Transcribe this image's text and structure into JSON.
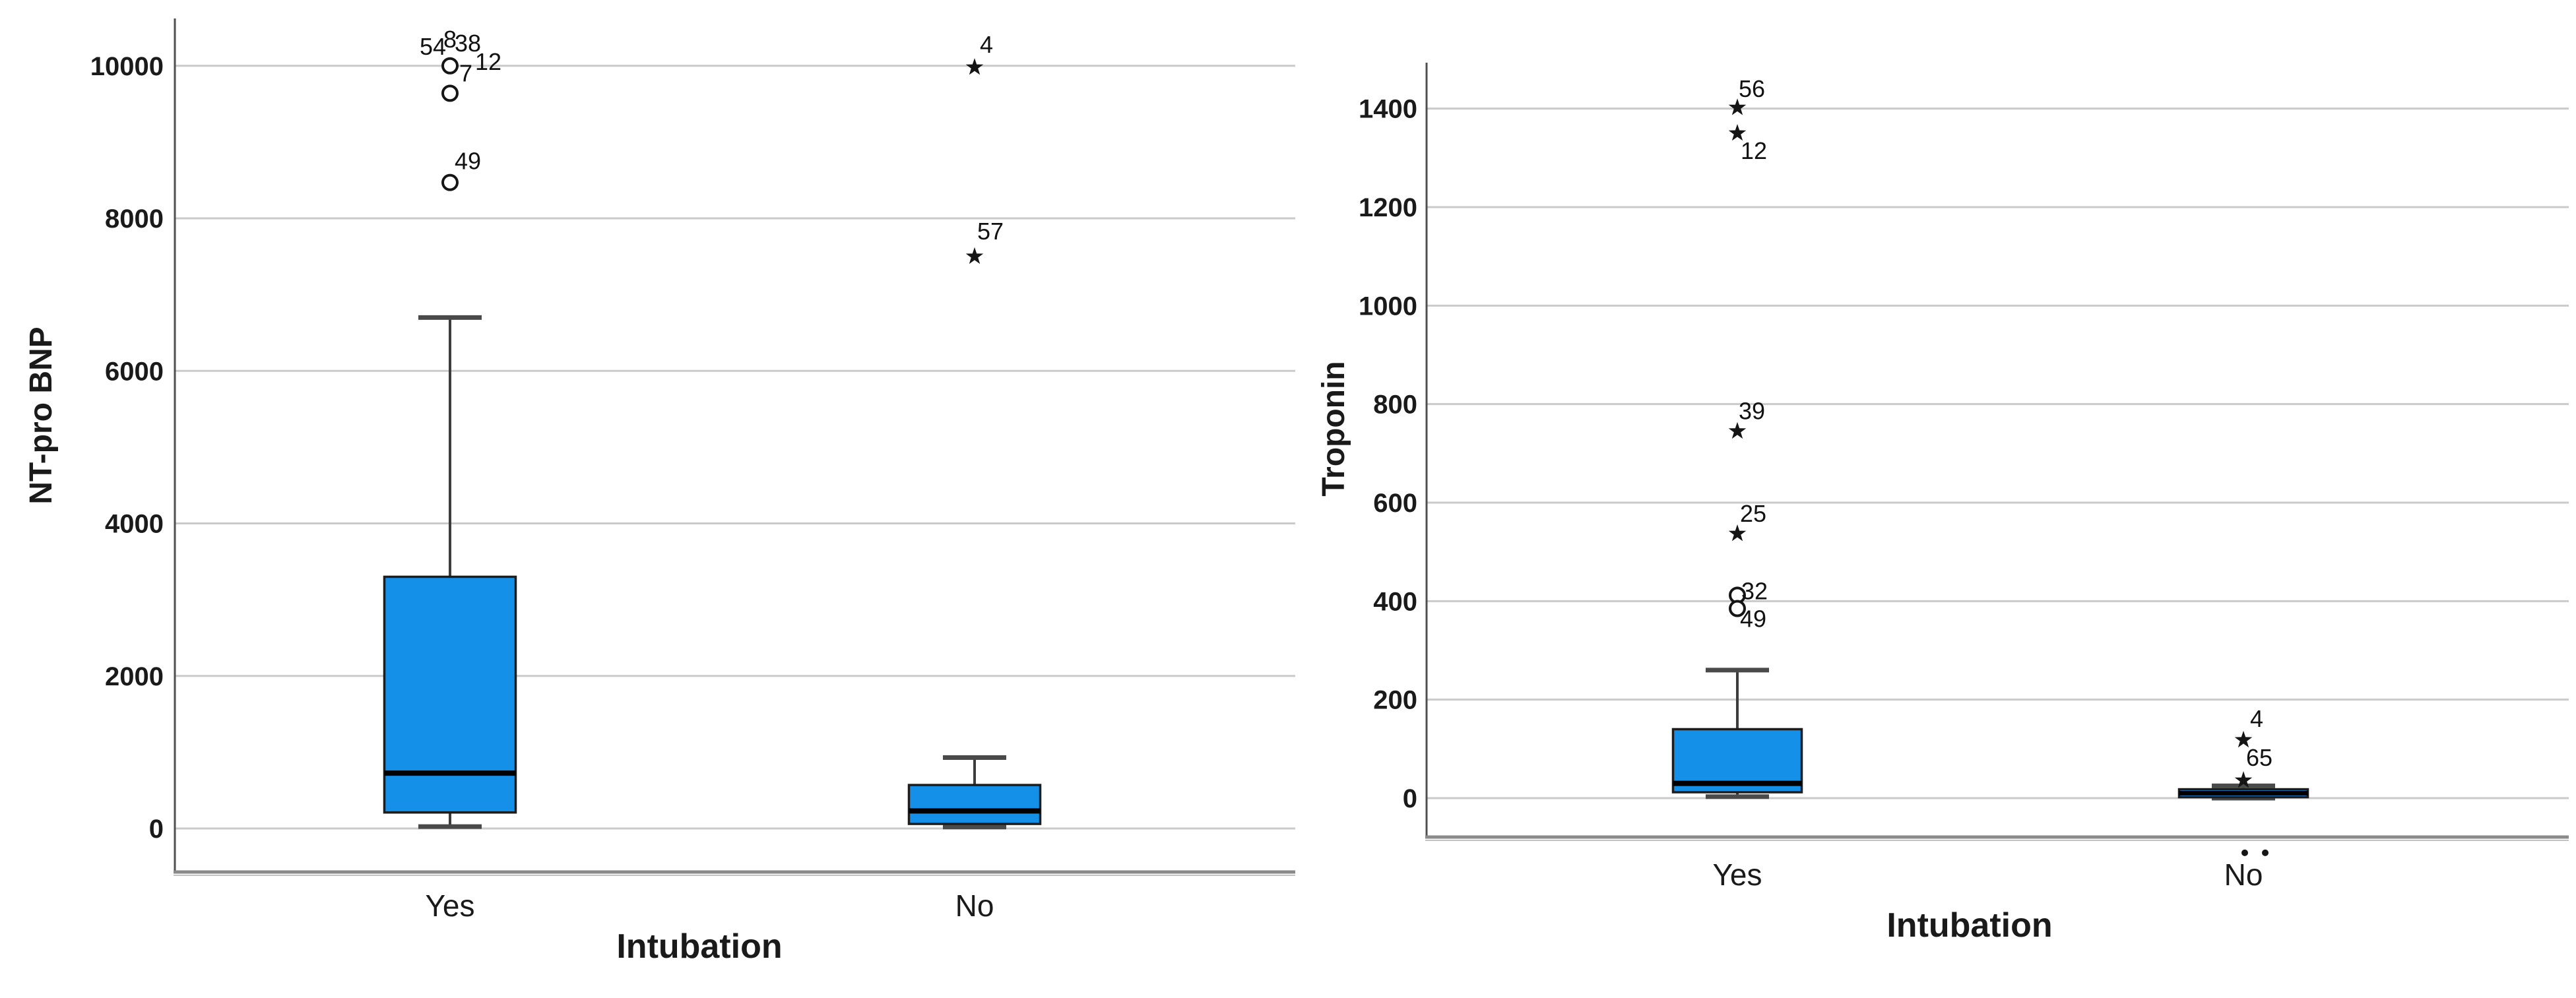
{
  "figure": {
    "background": "#ffffff",
    "description": "Two clustered boxplots of cardiac biomarkers by intubation status"
  },
  "style": {
    "box_fill": "#1590E8",
    "box_stroke": "#1d1d1d",
    "median_color": "#000000",
    "whisker_color": "#3d3d3d",
    "cap_color": "#4a4a4a",
    "grid_color": "#cacaca",
    "axis_color": "#4f4f4f",
    "frame_color": "#8a8a8a",
    "frame_color2": "#c2c2c2",
    "tick_label_color": "#1a1a1a",
    "outlier_label_color": "#111111",
    "marker_color": "#151515"
  },
  "chart_data": [
    {
      "type": "boxplot",
      "title": "",
      "ylabel": "NT-pro BNP",
      "xlabel": "Intubation",
      "categories": [
        "Yes",
        "No"
      ],
      "yticks": [
        0,
        2000,
        4000,
        6000,
        8000,
        10000
      ],
      "ylim": [
        -570,
        10620
      ],
      "grid": true,
      "legend": "none",
      "groups": [
        {
          "category": "Yes",
          "whisker_low": 25,
          "q1": 210,
          "median": 725,
          "q3": 3300,
          "whisker_high": 6700,
          "outliers": [
            {
              "marker": "circle",
              "value": 10000,
              "label": "54",
              "label_dx": -26,
              "label_dy": -29
            },
            {
              "marker": "none",
              "value": 10000,
              "label": "8",
              "label_dx": 0,
              "label_dy": -40
            },
            {
              "marker": "none",
              "value": 10000,
              "label": "38",
              "label_dx": 27,
              "label_dy": -34
            },
            {
              "marker": "none",
              "value": 10000,
              "label": "12",
              "label_dx": 58,
              "label_dy": -6
            },
            {
              "marker": "circle",
              "value": 9640,
              "label": "7",
              "label_dx": 24,
              "label_dy": -30
            },
            {
              "marker": "circle",
              "value": 8470,
              "label": "49",
              "label_dx": 27,
              "label_dy": -32
            }
          ]
        },
        {
          "category": "No",
          "whisker_low": 20,
          "q1": 60,
          "median": 230,
          "q3": 570,
          "whisker_high": 930,
          "outliers": [
            {
              "marker": "star",
              "value": 9980,
              "label": "4",
              "label_dx": 18,
              "label_dy": -34
            },
            {
              "marker": "star",
              "value": 7500,
              "label": "57",
              "label_dx": 24,
              "label_dy": -38
            }
          ]
        }
      ]
    },
    {
      "type": "boxplot",
      "title": "",
      "ylabel": "Troponin",
      "xlabel": "Intubation",
      "categories": [
        "Yes",
        "No"
      ],
      "yticks": [
        0,
        200,
        400,
        600,
        800,
        1000,
        1200,
        1400
      ],
      "ylim": [
        -79,
        1493
      ],
      "grid": true,
      "legend": "none",
      "groups": [
        {
          "category": "Yes",
          "whisker_low": 3,
          "q1": 12,
          "median": 30,
          "q3": 140,
          "whisker_high": 260,
          "outliers": [
            {
              "marker": "star",
              "value": 1402,
              "label": "56",
              "label_dx": 22,
              "label_dy": -28
            },
            {
              "marker": "star",
              "value": 1350,
              "label": "12",
              "label_dx": 25,
              "label_dy": 27
            },
            {
              "marker": "star",
              "value": 745,
              "label": "39",
              "label_dx": 22,
              "label_dy": -30
            },
            {
              "marker": "star",
              "value": 537,
              "label": "25",
              "label_dx": 24,
              "label_dy": -30
            },
            {
              "marker": "circle",
              "value": 412,
              "label": "32",
              "label_dx": 26,
              "label_dy": -6
            },
            {
              "marker": "circle",
              "value": 385,
              "label": "49",
              "label_dx": 24,
              "label_dy": 16
            }
          ]
        },
        {
          "category": "No",
          "whisker_low": 0,
          "q1": 2,
          "median": 10,
          "q3": 18,
          "whisker_high": 25,
          "outliers": [
            {
              "marker": "star",
              "value": 118,
              "label": "4",
              "label_dx": 20,
              "label_dy": -32
            },
            {
              "marker": "star",
              "value": 36,
              "label": "65",
              "label_dx": 24,
              "label_dy": -34
            },
            {
              "marker": "dot",
              "value": -111,
              "label": "",
              "label_dx": 2,
              "label_dy": 0
            },
            {
              "marker": "dot",
              "value": -111,
              "label": "",
              "label_dx": 33,
              "label_dy": 0
            }
          ]
        }
      ]
    }
  ]
}
